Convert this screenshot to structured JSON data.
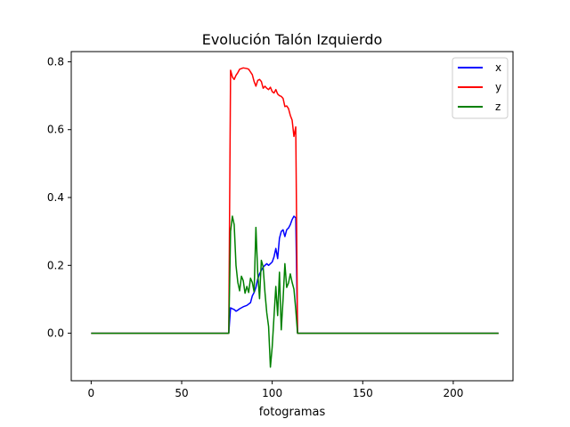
{
  "chart_data": {
    "type": "line",
    "title": "Evolución Talón Izquierdo",
    "xlabel": "fotogramas",
    "ylabel": "",
    "xlim": [
      -11,
      233
    ],
    "ylim": [
      -0.14,
      0.83
    ],
    "xticks": [
      0,
      50,
      100,
      150,
      200
    ],
    "yticks": [
      0.0,
      0.2,
      0.4,
      0.6,
      0.8
    ],
    "grid": false,
    "legend": "top-right",
    "series": [
      {
        "name": "x",
        "color": "#0000ff",
        "points": [
          [
            0,
            0
          ],
          [
            76,
            0
          ],
          [
            77,
            0.075
          ],
          [
            78,
            0.072
          ],
          [
            79,
            0.07
          ],
          [
            80,
            0.065
          ],
          [
            81,
            0.068
          ],
          [
            82,
            0.072
          ],
          [
            84,
            0.078
          ],
          [
            86,
            0.082
          ],
          [
            88,
            0.09
          ],
          [
            89,
            0.11
          ],
          [
            90,
            0.12
          ],
          [
            91,
            0.135
          ],
          [
            92,
            0.16
          ],
          [
            93,
            0.175
          ],
          [
            94,
            0.185
          ],
          [
            95,
            0.195
          ],
          [
            96,
            0.2
          ],
          [
            97,
            0.205
          ],
          [
            98,
            0.2
          ],
          [
            99,
            0.205
          ],
          [
            100,
            0.21
          ],
          [
            101,
            0.225
          ],
          [
            102,
            0.25
          ],
          [
            103,
            0.22
          ],
          [
            104,
            0.28
          ],
          [
            105,
            0.3
          ],
          [
            106,
            0.305
          ],
          [
            107,
            0.285
          ],
          [
            108,
            0.305
          ],
          [
            109,
            0.31
          ],
          [
            110,
            0.32
          ],
          [
            111,
            0.335
          ],
          [
            112,
            0.345
          ],
          [
            113,
            0.34
          ],
          [
            114,
            0
          ],
          [
            225,
            0
          ]
        ]
      },
      {
        "name": "y",
        "color": "#ff0000",
        "points": [
          [
            0,
            0
          ],
          [
            76,
            0
          ],
          [
            77,
            0.775
          ],
          [
            78,
            0.755
          ],
          [
            79,
            0.748
          ],
          [
            80,
            0.76
          ],
          [
            81,
            0.768
          ],
          [
            82,
            0.778
          ],
          [
            84,
            0.782
          ],
          [
            86,
            0.78
          ],
          [
            87,
            0.778
          ],
          [
            88,
            0.77
          ],
          [
            89,
            0.762
          ],
          [
            90,
            0.742
          ],
          [
            91,
            0.728
          ],
          [
            92,
            0.745
          ],
          [
            93,
            0.748
          ],
          [
            94,
            0.742
          ],
          [
            95,
            0.722
          ],
          [
            96,
            0.728
          ],
          [
            97,
            0.722
          ],
          [
            98,
            0.718
          ],
          [
            99,
            0.725
          ],
          [
            100,
            0.712
          ],
          [
            101,
            0.708
          ],
          [
            102,
            0.718
          ],
          [
            103,
            0.705
          ],
          [
            104,
            0.7
          ],
          [
            105,
            0.698
          ],
          [
            106,
            0.692
          ],
          [
            107,
            0.668
          ],
          [
            108,
            0.67
          ],
          [
            109,
            0.662
          ],
          [
            110,
            0.642
          ],
          [
            111,
            0.628
          ],
          [
            112,
            0.58
          ],
          [
            113,
            0.608
          ],
          [
            114,
            0
          ],
          [
            225,
            0
          ]
        ]
      },
      {
        "name": "z",
        "color": "#008000",
        "points": [
          [
            0,
            0
          ],
          [
            76,
            0
          ],
          [
            77,
            0.3
          ],
          [
            78,
            0.345
          ],
          [
            79,
            0.32
          ],
          [
            80,
            0.2
          ],
          [
            81,
            0.15
          ],
          [
            82,
            0.125
          ],
          [
            83,
            0.168
          ],
          [
            84,
            0.155
          ],
          [
            85,
            0.118
          ],
          [
            86,
            0.138
          ],
          [
            87,
            0.12
          ],
          [
            88,
            0.162
          ],
          [
            89,
            0.15
          ],
          [
            90,
            0.122
          ],
          [
            91,
            0.312
          ],
          [
            92,
            0.178
          ],
          [
            93,
            0.102
          ],
          [
            94,
            0.215
          ],
          [
            95,
            0.195
          ],
          [
            96,
            0.12
          ],
          [
            97,
            0.06
          ],
          [
            98,
            0.02
          ],
          [
            99,
            -0.1
          ],
          [
            100,
            -0.04
          ],
          [
            101,
            0.05
          ],
          [
            102,
            0.138
          ],
          [
            103,
            0.052
          ],
          [
            104,
            0.18
          ],
          [
            105,
            0.01
          ],
          [
            106,
            0.1
          ],
          [
            107,
            0.205
          ],
          [
            108,
            0.135
          ],
          [
            109,
            0.148
          ],
          [
            110,
            0.175
          ],
          [
            111,
            0.15
          ],
          [
            112,
            0.13
          ],
          [
            113,
            0.07
          ],
          [
            114,
            0
          ],
          [
            225,
            0
          ]
        ]
      }
    ]
  }
}
